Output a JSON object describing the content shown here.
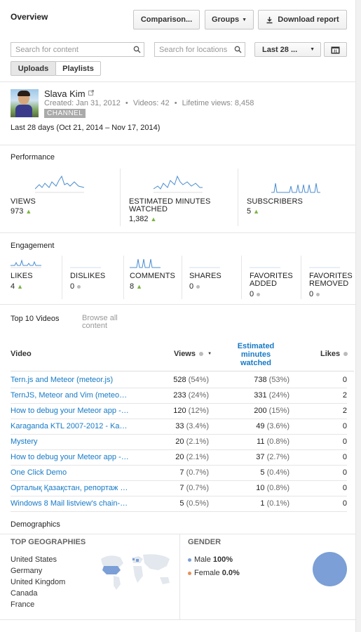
{
  "header": {
    "title": "Overview",
    "comparison_label": "Comparison...",
    "groups_label": "Groups",
    "download_label": "Download report"
  },
  "filters": {
    "content_placeholder": "Search for content",
    "locations_placeholder": "Search for locations",
    "date_range": "Last 28 ...",
    "calendar_day": "31",
    "tabs": [
      "Uploads",
      "Playlists"
    ]
  },
  "channel": {
    "name": "Slava Kim",
    "created": "Created: Jan 31, 2012",
    "videos": "Videos: 42",
    "lifetime_views": "Lifetime views: 8,458",
    "badge": "CHANNEL",
    "period": "Last 28 days (Oct 21, 2014 – Nov 17, 2014)"
  },
  "performance": {
    "title": "Performance",
    "metrics": [
      {
        "label": "VIEWS",
        "value": "973",
        "trend": "up"
      },
      {
        "label": "ESTIMATED MINUTES WATCHED",
        "value": "1,382",
        "trend": "up"
      },
      {
        "label": "SUBSCRIBERS",
        "value": "5",
        "trend": "up"
      }
    ]
  },
  "engagement": {
    "title": "Engagement",
    "metrics": [
      {
        "label": "LIKES",
        "value": "4",
        "trend": "up"
      },
      {
        "label": "DISLIKES",
        "value": "0",
        "trend": "flat"
      },
      {
        "label": "COMMENTS",
        "value": "8",
        "trend": "up"
      },
      {
        "label": "SHARES",
        "value": "0",
        "trend": "flat"
      },
      {
        "label": "FAVORITES ADDED",
        "value": "0",
        "trend": "flat"
      },
      {
        "label": "FAVORITES REMOVED",
        "value": "0",
        "trend": "flat"
      }
    ]
  },
  "top_videos": {
    "tab_active": "Top 10 Videos",
    "tab_other": "Browse all content",
    "columns": {
      "video": "Video",
      "views": "Views",
      "minutes": "Estimated minutes watched",
      "likes": "Likes"
    },
    "rows": [
      {
        "title": "Tern.js and Meteor (meteor.js)",
        "views": "528",
        "views_pct": "(54%)",
        "minutes": "738",
        "minutes_pct": "(53%)",
        "likes": "0"
      },
      {
        "title": "TernJS, Meteor and Vim (meteo…",
        "views": "233",
        "views_pct": "(24%)",
        "minutes": "331",
        "minutes_pct": "(24%)",
        "likes": "2"
      },
      {
        "title": "How to debug your Meteor app -…",
        "views": "120",
        "views_pct": "(12%)",
        "minutes": "200",
        "minutes_pct": "(15%)",
        "likes": "2"
      },
      {
        "title": "Karaganda KTL 2007-2012 - Ka…",
        "views": "33",
        "views_pct": "(3.4%)",
        "minutes": "49",
        "minutes_pct": "(3.6%)",
        "likes": "0"
      },
      {
        "title": "Mystery",
        "views": "20",
        "views_pct": "(2.1%)",
        "minutes": "11",
        "minutes_pct": "(0.8%)",
        "likes": "0"
      },
      {
        "title": "How to debug your Meteor app -…",
        "views": "20",
        "views_pct": "(2.1%)",
        "minutes": "37",
        "minutes_pct": "(2.7%)",
        "likes": "0"
      },
      {
        "title": "One Click Demo",
        "views": "7",
        "views_pct": "(0.7%)",
        "minutes": "5",
        "minutes_pct": "(0.4%)",
        "likes": "0"
      },
      {
        "title": "Орталық Қазақстан, репортаж …",
        "views": "7",
        "views_pct": "(0.7%)",
        "minutes": "10",
        "minutes_pct": "(0.8%)",
        "likes": "0"
      },
      {
        "title": "Windows 8 Mail listview's chain-…",
        "views": "5",
        "views_pct": "(0.5%)",
        "minutes": "1",
        "minutes_pct": "(0.1%)",
        "likes": "0"
      }
    ]
  },
  "demographics": {
    "title": "Demographics",
    "geo_title": "TOP GEOGRAPHIES",
    "countries": [
      "United States",
      "Germany",
      "United Kingdom",
      "Canada",
      "France"
    ],
    "gender_title": "GENDER",
    "male_label": "Male",
    "male_value": "100%",
    "female_label": "Female",
    "female_value": "0.0%",
    "male_color": "#7b9fd6",
    "female_color": "#e88f57"
  },
  "colors": {
    "link": "#167ac6",
    "sparkline": "#4b8dd1",
    "trend_up": "#7cb342"
  }
}
